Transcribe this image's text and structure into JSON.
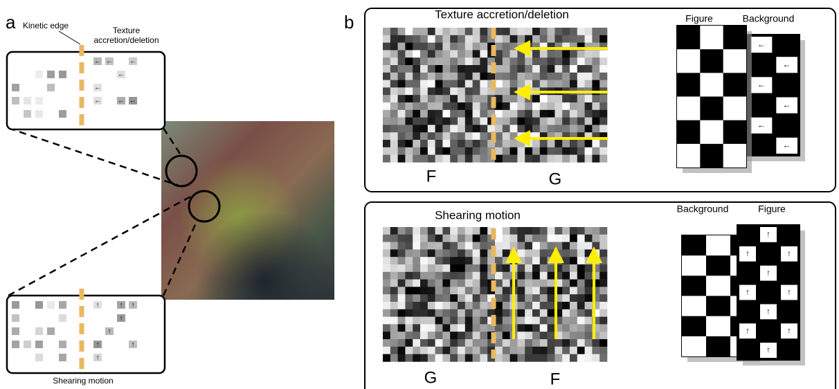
{
  "panel_a": {
    "label": "a",
    "kinetic_edge": "Kinetic edge",
    "top_inset_label": "Texture accretion/deletion",
    "bottom_inset_label": "Shearing motion"
  },
  "panel_b": {
    "label": "b",
    "rows": [
      {
        "title": "Texture accretion/deletion",
        "left_letter": "F",
        "right_letter": "G",
        "stack_labels": [
          "Figure",
          "Background"
        ]
      },
      {
        "title": "Shearing motion",
        "left_letter": "G",
        "right_letter": "F",
        "stack_labels": [
          "Background",
          "Figure"
        ]
      }
    ]
  }
}
